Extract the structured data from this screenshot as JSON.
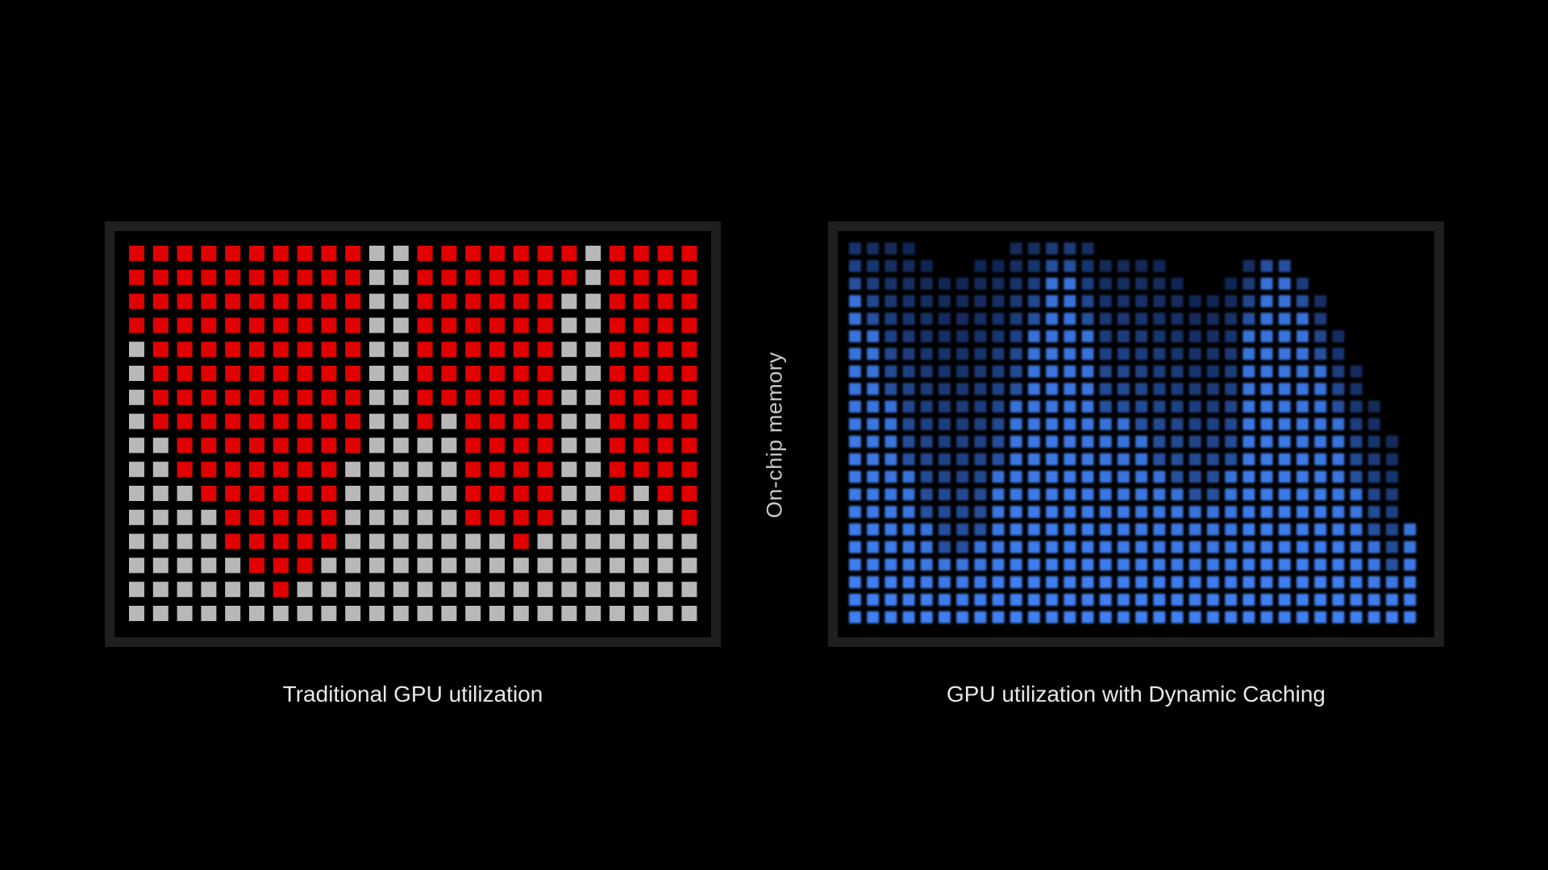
{
  "labels": {
    "axis": "On-chip memory",
    "left_caption": "Traditional GPU utilization",
    "right_caption": "GPU utilization with Dynamic Caching"
  },
  "colors": {
    "background": "#000000",
    "frame": "#1f1f1f",
    "used_red": "#e00000",
    "unused_gray": "#b8b8b8",
    "blue_bright": "#3f7ff0"
  },
  "left_grid": {
    "cols": 24,
    "rows": 16,
    "red_end_row_by_col": [
      4,
      8,
      10,
      11,
      13,
      14,
      15,
      14,
      13,
      9,
      0,
      0,
      8,
      7,
      12,
      12,
      13,
      12,
      2,
      0,
      11,
      10,
      11,
      12
    ],
    "extra_gray_cells": [
      [
        10,
        1
      ],
      [
        10,
        2
      ]
    ]
  },
  "right_grid": {
    "cols": 32,
    "rows": 22,
    "column_heights": [
      22,
      22,
      22,
      22,
      21,
      20,
      20,
      21,
      21,
      22,
      22,
      22,
      22,
      22,
      21,
      21,
      21,
      21,
      20,
      19,
      19,
      20,
      21,
      21,
      21,
      20,
      19,
      17,
      15,
      13,
      11,
      6
    ],
    "bright_heights": [
      19,
      17,
      13,
      9,
      6,
      4,
      4,
      5,
      9,
      13,
      17,
      20,
      20,
      17,
      12,
      12,
      11,
      9,
      8,
      7,
      7,
      9,
      17,
      20,
      20,
      18,
      15,
      12,
      8,
      5,
      3,
      6
    ]
  }
}
